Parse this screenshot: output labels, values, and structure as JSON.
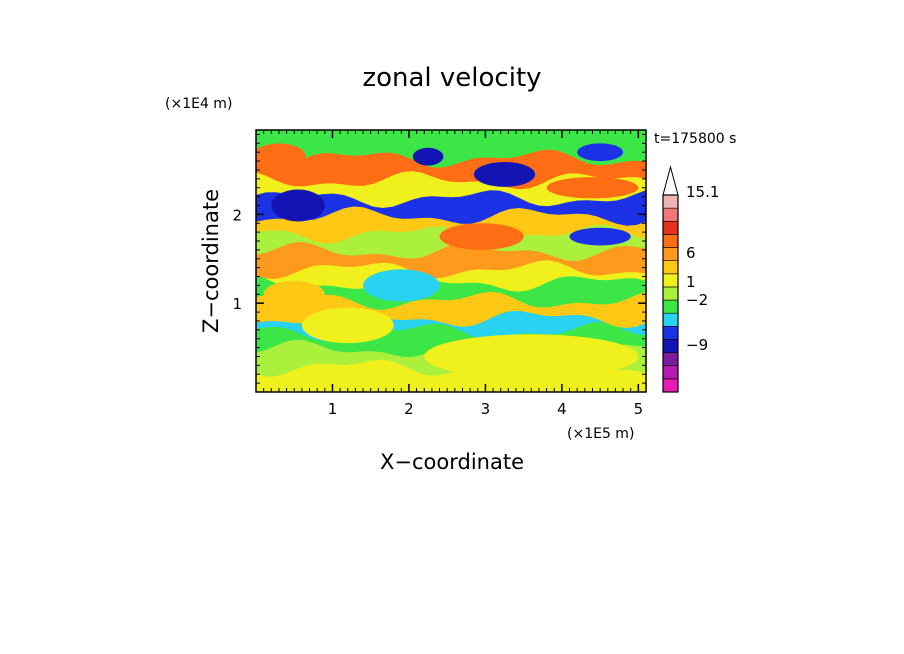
{
  "chart_data": {
    "type": "heatmap",
    "title": "zonal velocity",
    "xlabel": "X−coordinate",
    "ylabel": "Z−coordinate",
    "x_scale_label": "(×1E5 m)",
    "y_scale_label": "(×1E4 m)",
    "time_label": "t=175800 s",
    "xlim": [
      0,
      5.1
    ],
    "ylim": [
      0,
      2.95
    ],
    "xticks": [
      1,
      2,
      3,
      4,
      5
    ],
    "yticks": [
      1,
      2
    ],
    "xtick_labels": [
      "1",
      "2",
      "3",
      "4",
      "5"
    ],
    "ytick_labels": [
      "1",
      "2"
    ],
    "colorbar": {
      "extend_max": true,
      "colors": [
        "#e81cb4",
        "#b41cb0",
        "#7a1c9e",
        "#1414b4",
        "#1c32e6",
        "#28d2f0",
        "#3ce646",
        "#aaf03c",
        "#f0f01c",
        "#ffc814",
        "#ff9a1c",
        "#ff6e14",
        "#e6321c",
        "#f07878",
        "#f0b4b4"
      ],
      "tick_labels": [
        "15.1",
        "6",
        "1",
        "−2",
        "−9"
      ],
      "tick_values": [
        15.1,
        6,
        1,
        -2,
        -9
      ]
    },
    "bands": [
      {
        "z": 0.1,
        "level": 8
      },
      {
        "z": 0.3,
        "level": 8
      },
      {
        "z": 0.5,
        "level": 7
      },
      {
        "z": 0.7,
        "level": 6
      },
      {
        "z": 0.9,
        "level": 5
      },
      {
        "z": 1.05,
        "level": 9
      },
      {
        "z": 1.25,
        "level": 6
      },
      {
        "z": 1.45,
        "level": 8
      },
      {
        "z": 1.6,
        "level": 10
      },
      {
        "z": 1.8,
        "level": 7
      },
      {
        "z": 2.0,
        "level": 9
      },
      {
        "z": 2.2,
        "level": 4
      },
      {
        "z": 2.4,
        "level": 8
      },
      {
        "z": 2.6,
        "level": 11
      },
      {
        "z": 2.85,
        "level": 6
      }
    ]
  }
}
